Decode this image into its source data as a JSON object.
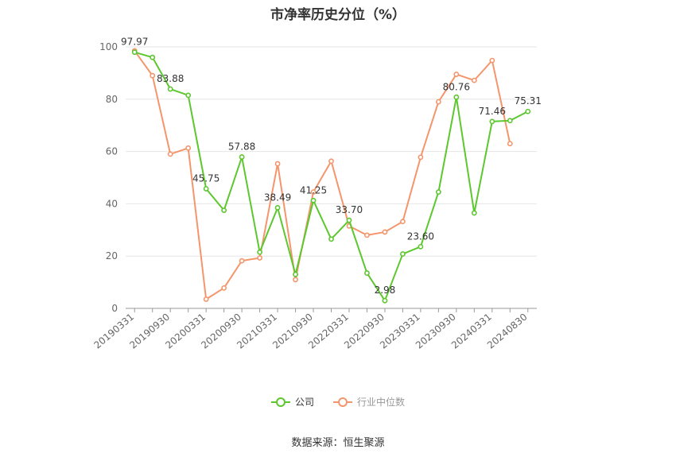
{
  "title": "市净率历史分位（%）",
  "source": "数据来源：恒生聚源",
  "legend": {
    "company": "公司",
    "industry": "行业中位数"
  },
  "colors": {
    "company": "#5cc72e",
    "industry": "#f4956b"
  },
  "chart_data": {
    "type": "line",
    "title": "市净率历史分位（%）",
    "ylim": [
      0,
      100
    ],
    "yticks": [
      0,
      20,
      40,
      60,
      80,
      100
    ],
    "xtick_labels": [
      "20190331",
      "20190930",
      "20200331",
      "20200930",
      "20210331",
      "20210930",
      "20220331",
      "20220930",
      "20230331",
      "20230930",
      "20240331",
      "20240830"
    ],
    "x": [
      "20190331",
      "20190630",
      "20190930",
      "20191231",
      "20200331",
      "20200630",
      "20200930",
      "20201231",
      "20210331",
      "20210630",
      "20210930",
      "20211231",
      "20220331",
      "20220630",
      "20220930",
      "20221231",
      "20230331",
      "20230630",
      "20230930",
      "20231231",
      "20240331",
      "20240630",
      "20240830"
    ],
    "series": [
      {
        "name": "公司",
        "values": [
          97.97,
          96,
          83.88,
          81.5,
          45.75,
          37.5,
          57.88,
          21.5,
          38.49,
          13,
          41.25,
          26.5,
          33.7,
          13.5,
          2.98,
          20.8,
          23.6,
          44.5,
          80.76,
          36.5,
          71.46,
          71.8,
          75.31
        ],
        "labels": {
          "0": "97.97",
          "2": "83.88",
          "4": "45.75",
          "6": "57.88",
          "8": "38.49",
          "10": "41.25",
          "12": "33.70",
          "14": "2.98",
          "16": "23.60",
          "18": "80.76",
          "20": "71.46",
          "22": "75.31"
        }
      },
      {
        "name": "行业中位数",
        "values": [
          98.5,
          89,
          59,
          61.3,
          3.5,
          7.8,
          18.2,
          19.3,
          55.3,
          11,
          44.5,
          56.3,
          31.5,
          28,
          29.2,
          33.2,
          57.8,
          79,
          89.5,
          87.2,
          94.8,
          63,
          null
        ]
      }
    ],
    "grid": true,
    "legend_position": "bottom"
  }
}
